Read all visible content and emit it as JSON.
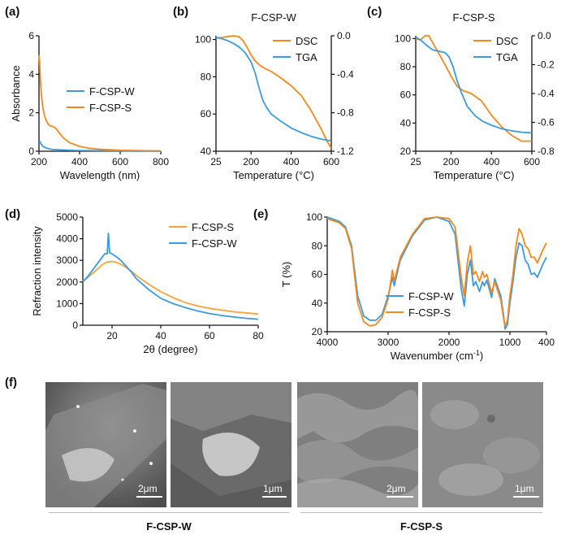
{
  "colors": {
    "blue": "#3c9ae0",
    "orange": "#f08a1e",
    "orange_light": "#f5a43c",
    "axis": "#111111"
  },
  "panel_labels": {
    "a": "(a)",
    "b": "(b)",
    "c": "(c)",
    "d": "(d)",
    "e": "(e)",
    "f": "(f)"
  },
  "chart_data": [
    {
      "id": "a",
      "type": "line",
      "title": "",
      "xlabel": "Wavelength (nm)",
      "ylabel": "Absorbance",
      "xlim": [
        200,
        800
      ],
      "ylim": [
        0,
        6
      ],
      "xticks": [
        "200",
        "400",
        "600",
        "800"
      ],
      "yticks": [
        "0",
        "2",
        "4",
        "6"
      ],
      "legend_position": "center-right",
      "series": [
        {
          "name": "F-CSP-W",
          "color": "blue",
          "x": [
            200,
            205,
            210,
            220,
            240,
            260,
            300,
            350,
            400,
            500,
            600,
            700,
            800
          ],
          "y": [
            0.45,
            0.5,
            0.38,
            0.25,
            0.15,
            0.1,
            0.07,
            0.05,
            0.04,
            0.03,
            0.02,
            0.01,
            0.01
          ]
        },
        {
          "name": "F-CSP-S",
          "color": "orange",
          "x": [
            200,
            203,
            206,
            210,
            215,
            220,
            230,
            240,
            250,
            260,
            270,
            280,
            290,
            300,
            320,
            350,
            400,
            450,
            500,
            600,
            700,
            800
          ],
          "y": [
            5.0,
            4.6,
            3.9,
            3.2,
            2.6,
            2.2,
            1.75,
            1.5,
            1.35,
            1.3,
            1.28,
            1.22,
            1.1,
            0.95,
            0.7,
            0.45,
            0.25,
            0.15,
            0.1,
            0.05,
            0.03,
            0.02
          ]
        }
      ]
    },
    {
      "id": "b",
      "type": "line",
      "title": "F-CSP-W",
      "xlabel": "Temperature (°C)",
      "ylabel": "",
      "xlim": [
        25,
        600
      ],
      "ylim": [
        40,
        102
      ],
      "y2lim": [
        -1.2,
        0.0
      ],
      "xticks": [
        "25",
        "200",
        "400",
        "600"
      ],
      "yticks": [
        "40",
        "60",
        "80",
        "100"
      ],
      "y2ticks": [
        "0.0",
        "-0.4",
        "-0.8",
        "-1.2"
      ],
      "legend_position": "top-right",
      "series": [
        {
          "name": "DSC",
          "color": "orange",
          "axis": "right",
          "x": [
            25,
            50,
            80,
            110,
            140,
            160,
            180,
            200,
            220,
            240,
            260,
            300,
            350,
            400,
            450,
            500,
            550,
            580,
            600
          ],
          "y": [
            -0.02,
            -0.02,
            -0.01,
            0.0,
            -0.01,
            -0.05,
            -0.12,
            -0.2,
            -0.26,
            -0.3,
            -0.33,
            -0.37,
            -0.44,
            -0.52,
            -0.62,
            -0.78,
            -0.97,
            -1.1,
            -1.17
          ]
        },
        {
          "name": "TGA",
          "color": "blue",
          "axis": "left",
          "x": [
            25,
            50,
            80,
            110,
            140,
            170,
            200,
            220,
            240,
            260,
            280,
            300,
            350,
            400,
            450,
            500,
            550,
            600
          ],
          "y": [
            101,
            100.5,
            99.5,
            98,
            96,
            93,
            88,
            82,
            74,
            67,
            63,
            60,
            56,
            52.5,
            50,
            48,
            46.5,
            45.5
          ]
        }
      ]
    },
    {
      "id": "c",
      "type": "line",
      "title": "F-CSP-S",
      "xlabel": "Temperature (°C)",
      "ylabel": "",
      "xlim": [
        25,
        600
      ],
      "ylim": [
        20,
        102
      ],
      "y2lim": [
        -0.8,
        0.0
      ],
      "xticks": [
        "25",
        "200",
        "400",
        "600"
      ],
      "yticks": [
        "20",
        "40",
        "60",
        "80",
        "100"
      ],
      "y2ticks": [
        "0.0",
        "-0.2",
        "-0.4",
        "-0.6",
        "-0.8"
      ],
      "legend_position": "top-right",
      "series": [
        {
          "name": "DSC",
          "color": "orange",
          "axis": "right",
          "x": [
            25,
            50,
            70,
            90,
            110,
            130,
            150,
            170,
            200,
            230,
            260,
            300,
            350,
            400,
            450,
            500,
            550,
            600
          ],
          "y": [
            -0.02,
            -0.03,
            -0.0,
            0.0,
            -0.05,
            -0.1,
            -0.15,
            -0.2,
            -0.28,
            -0.35,
            -0.38,
            -0.4,
            -0.45,
            -0.55,
            -0.63,
            -0.69,
            -0.73,
            -0.73
          ]
        },
        {
          "name": "TGA",
          "color": "blue",
          "axis": "left",
          "x": [
            25,
            50,
            80,
            110,
            140,
            170,
            190,
            210,
            230,
            250,
            280,
            320,
            360,
            400,
            450,
            500,
            550,
            600
          ],
          "y": [
            101,
            99,
            95,
            92,
            91,
            90,
            87,
            80,
            70,
            62,
            52,
            45,
            41,
            38.5,
            36,
            34.5,
            33.5,
            33
          ]
        }
      ]
    },
    {
      "id": "d",
      "type": "line",
      "title": "",
      "xlabel": "2θ (degree)",
      "ylabel": "Refraction intensity",
      "xlim": [
        8,
        80
      ],
      "ylim": [
        0,
        5000
      ],
      "xticks": [
        "20",
        "40",
        "60",
        "80"
      ],
      "yticks": [
        "0",
        "1000",
        "2000",
        "3000",
        "4000",
        "5000"
      ],
      "legend_position": "top-right",
      "series": [
        {
          "name": "F-CSP-S",
          "color": "orange_light",
          "x": [
            8,
            10,
            12,
            14,
            16,
            18,
            20,
            22,
            24,
            26,
            28,
            30,
            35,
            40,
            45,
            50,
            55,
            60,
            65,
            70,
            75,
            80
          ],
          "y": [
            2050,
            2200,
            2400,
            2600,
            2800,
            2920,
            2950,
            2900,
            2800,
            2650,
            2500,
            2300,
            1900,
            1550,
            1280,
            1050,
            900,
            780,
            700,
            620,
            570,
            520
          ]
        },
        {
          "name": "F-CSP-W",
          "color": "blue",
          "x": [
            8,
            10,
            12,
            14,
            16,
            17,
            18,
            18.5,
            19,
            20,
            22,
            24,
            26,
            28,
            30,
            35,
            40,
            45,
            50,
            55,
            60,
            65,
            70,
            75,
            80
          ],
          "y": [
            2000,
            2250,
            2550,
            2850,
            3150,
            3300,
            3300,
            4250,
            3350,
            3300,
            3150,
            2950,
            2700,
            2450,
            2150,
            1650,
            1250,
            1000,
            820,
            660,
            540,
            450,
            380,
            320,
            280
          ]
        }
      ]
    },
    {
      "id": "e",
      "type": "line",
      "title": "",
      "xlabel": "Wavenumber (cm",
      "xlabel_sup": "-1",
      "xlabel_tail": ")",
      "ylabel": "T (%)",
      "xlim": [
        4000,
        400
      ],
      "ylim": [
        20,
        100
      ],
      "xticks": [
        "4000",
        "3000",
        "2000",
        "1000",
        "400"
      ],
      "yticks": [
        "20",
        "40",
        "60",
        "80",
        "100"
      ],
      "legend_position": "bottom-left",
      "series": [
        {
          "name": "F-CSP-W",
          "color": "blue",
          "x": [
            4000,
            3800,
            3700,
            3600,
            3500,
            3400,
            3300,
            3200,
            3100,
            3000,
            2930,
            2900,
            2800,
            2600,
            2400,
            2200,
            2000,
            1900,
            1800,
            1750,
            1700,
            1650,
            1600,
            1560,
            1500,
            1450,
            1420,
            1380,
            1300,
            1250,
            1150,
            1100,
            1080,
            1040,
            1000,
            950,
            900,
            850,
            800,
            750,
            700,
            650,
            600,
            550,
            500,
            450,
            400
          ],
          "y": [
            100,
            97,
            93,
            80,
            45,
            31,
            28,
            28,
            32,
            45,
            58,
            52,
            70,
            87,
            98,
            100,
            97,
            88,
            50,
            38,
            60,
            70,
            52,
            55,
            48,
            55,
            52,
            56,
            44,
            57,
            45,
            30,
            22,
            25,
            40,
            55,
            72,
            82,
            80,
            70,
            67,
            60,
            61,
            58,
            63,
            68,
            72
          ]
        },
        {
          "name": "F-CSP-S",
          "color": "orange",
          "x": [
            4000,
            3800,
            3700,
            3600,
            3500,
            3400,
            3300,
            3200,
            3100,
            3000,
            2930,
            2900,
            2800,
            2600,
            2400,
            2200,
            2000,
            1900,
            1800,
            1750,
            1700,
            1650,
            1600,
            1560,
            1500,
            1450,
            1420,
            1380,
            1300,
            1250,
            1150,
            1100,
            1080,
            1040,
            1000,
            950,
            900,
            850,
            800,
            750,
            700,
            650,
            600,
            550,
            500,
            450,
            400
          ],
          "y": [
            99,
            96,
            92,
            78,
            40,
            27,
            24,
            25,
            30,
            43,
            63,
            55,
            72,
            88,
            99,
            100,
            99,
            93,
            58,
            45,
            68,
            80,
            60,
            62,
            55,
            62,
            58,
            60,
            47,
            55,
            42,
            28,
            24,
            28,
            45,
            60,
            80,
            92,
            88,
            80,
            78,
            72,
            72,
            68,
            73,
            78,
            82
          ]
        }
      ]
    }
  ],
  "sem": {
    "images": [
      {
        "scale_label": "2μm"
      },
      {
        "scale_label": "1μm"
      },
      {
        "scale_label": "2μm"
      },
      {
        "scale_label": "1μm"
      }
    ],
    "groups": [
      {
        "label": "F-CSP-W"
      },
      {
        "label": "F-CSP-S"
      }
    ]
  }
}
